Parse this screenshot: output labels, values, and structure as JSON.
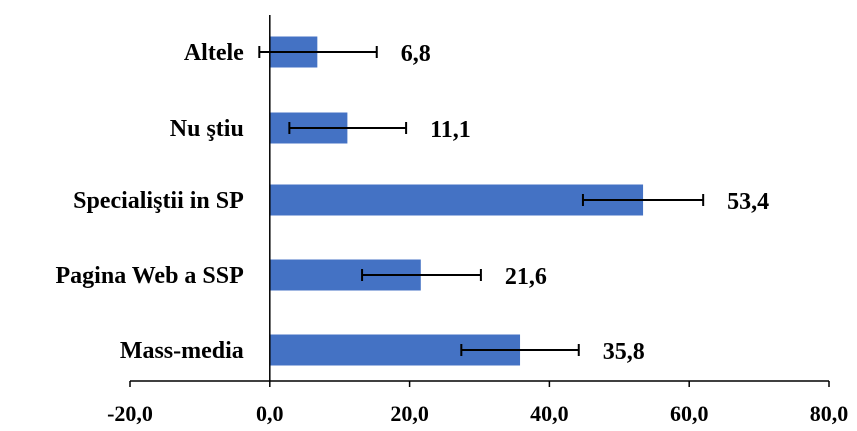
{
  "chart_data": {
    "type": "bar",
    "orientation": "horizontal",
    "categories": [
      "Altele",
      "Nu ştiu",
      "Specialiştii in SP",
      "Pagina Web a SSP",
      "Mass-media"
    ],
    "values": [
      6.8,
      11.1,
      53.4,
      21.6,
      35.8
    ],
    "data_labels": [
      "6,8",
      "11,1",
      "53,4",
      "21,6",
      "35,8"
    ],
    "error_bars": [
      {
        "low": -1.5,
        "high": 15.3
      },
      {
        "low": 2.8,
        "high": 19.5
      },
      {
        "low": 44.8,
        "high": 62.0
      },
      {
        "low": 13.2,
        "high": 30.2
      },
      {
        "low": 27.4,
        "high": 44.2
      }
    ],
    "xlim": [
      -20,
      80
    ],
    "xticks": [
      -20,
      0,
      20,
      40,
      60,
      80
    ],
    "xtick_labels": [
      "-20,0",
      "0,0",
      "20,0",
      "40,0",
      "60,0",
      "80,0"
    ],
    "title": "",
    "xlabel": "",
    "ylabel": "",
    "grid": false,
    "legend": "none",
    "colors": {
      "bar": "#4472C4",
      "axis": "#000000",
      "error": "#000000"
    }
  }
}
